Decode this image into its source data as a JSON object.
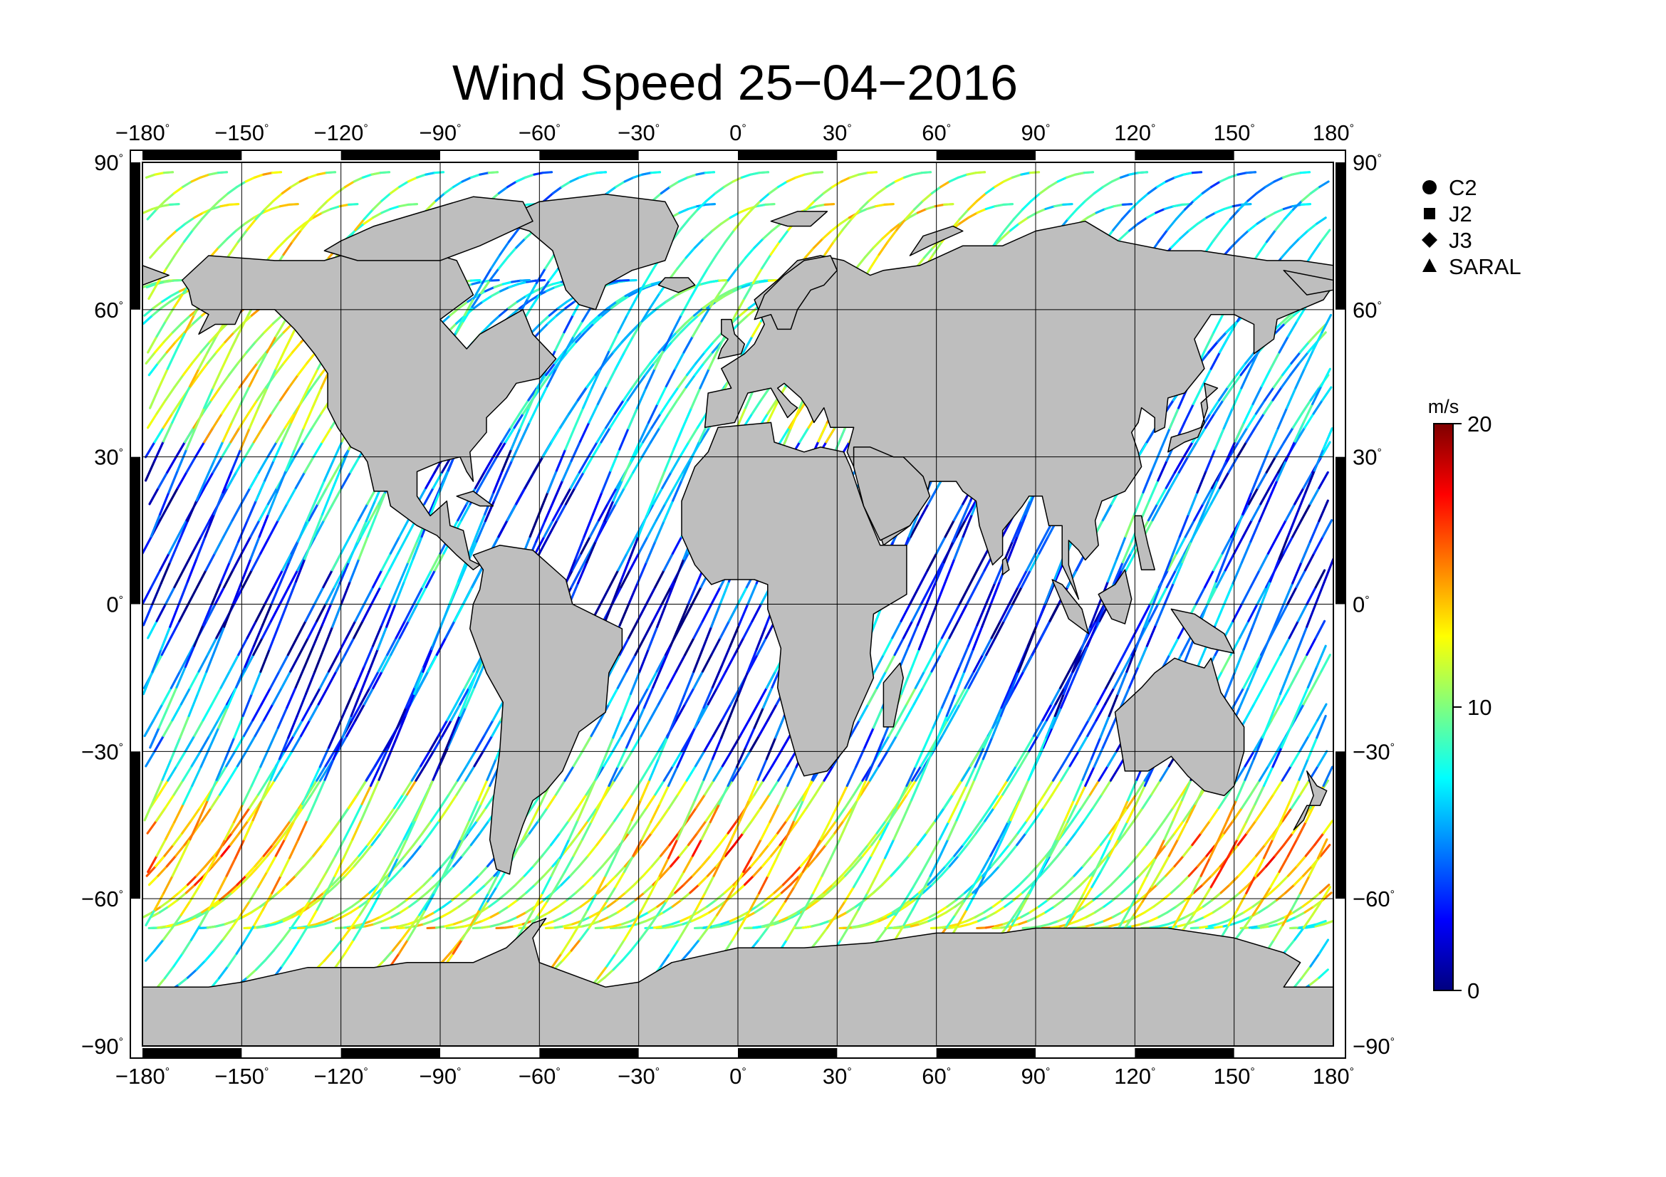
{
  "title": "Wind Speed 25−04−2016",
  "degree_symbol": "°",
  "map": {
    "projection": "equirectangular",
    "lon_range": [
      -180,
      180
    ],
    "lat_range": [
      -90,
      90
    ],
    "grid_lon": [
      -180,
      -150,
      -120,
      -90,
      -60,
      -30,
      0,
      30,
      60,
      90,
      120,
      150,
      180
    ],
    "grid_lat": [
      -90,
      -60,
      -30,
      0,
      30,
      60,
      90
    ],
    "lon_tick_labels": [
      "−180",
      "−150",
      "−120",
      "−90",
      "−60",
      "−30",
      "0",
      "30",
      "60",
      "90",
      "120",
      "150",
      "180"
    ],
    "lat_tick_labels": [
      "−90",
      "−60",
      "−30",
      "0",
      "30",
      "60",
      "90"
    ],
    "land_color": "#bebebe",
    "ocean_color": "#ffffff",
    "coast_color": "#000000",
    "frame_color": "#000000"
  },
  "legend": {
    "items": [
      {
        "label": "C2",
        "symbol": "circle-icon"
      },
      {
        "label": "J2",
        "symbol": "square-icon"
      },
      {
        "label": "J3",
        "symbol": "diamond-icon"
      },
      {
        "label": "SARAL",
        "symbol": "triangle-icon"
      }
    ]
  },
  "colorbar": {
    "unit": "m/s",
    "min": 0,
    "max": 20,
    "tick_values": [
      0,
      10,
      20
    ],
    "tick_labels": [
      "0",
      "10",
      "20"
    ],
    "colormap": [
      "#00007f",
      "#0000ff",
      "#007fff",
      "#00ffff",
      "#7fff7f",
      "#ffff00",
      "#ff7f00",
      "#ff0000",
      "#7f0000"
    ]
  }
}
